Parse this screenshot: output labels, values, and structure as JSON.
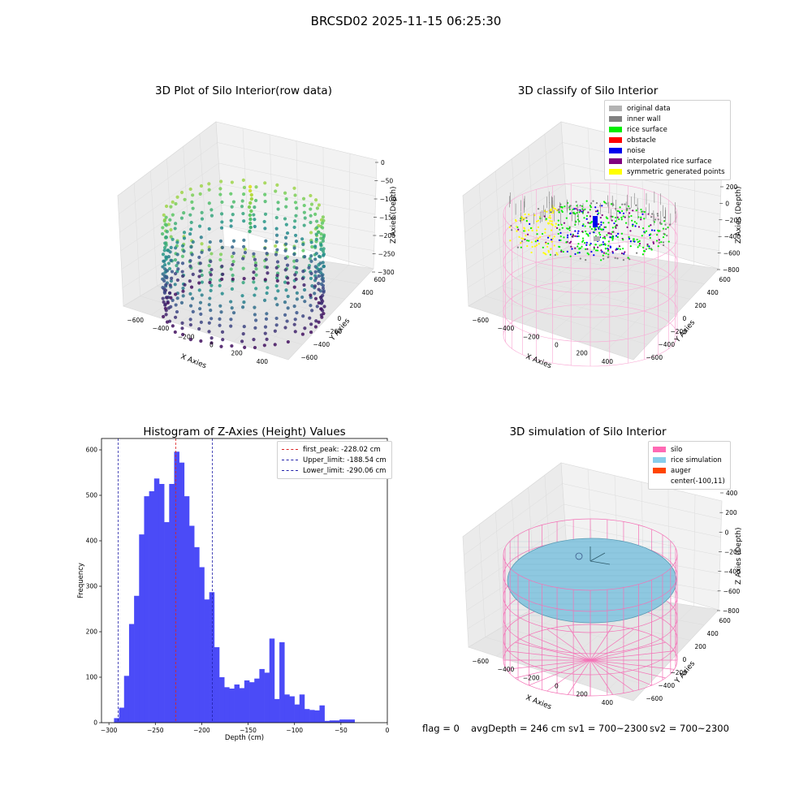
{
  "suptitle": "BRCSD02 2025-11-15 06:25:30",
  "colors": {
    "histogram_bar": "#4b4bf7",
    "peak_line": "#dd2222",
    "limit_line": "#2222aa",
    "silo_wire": "#f472b6",
    "rice_fill": "#8ec8e0",
    "rice_edge": "#5a9cb4"
  },
  "panels": {
    "raw": {
      "title": "3D Plot of Silo Interior(row data)",
      "xlabel": "X Axies",
      "ylabel": "Y Axies",
      "zlabel": "Z Axies (Depth)",
      "xticks": [
        "−600",
        "−400",
        "−200",
        "0",
        "200",
        "400"
      ],
      "yticks": [
        "−600",
        "−400",
        "−200",
        "0",
        "200",
        "400",
        "600"
      ],
      "zticks": [
        "0",
        "−50",
        "−100",
        "−150",
        "−200",
        "−250",
        "−300"
      ]
    },
    "classify": {
      "title": "3D classify of Silo Interior",
      "xlabel": "X Axies",
      "ylabel": "Y Axies",
      "zlabel": "Z Axies (Depth)",
      "xticks": [
        "−600",
        "−400",
        "−200",
        "0",
        "200",
        "400"
      ],
      "yticks": [
        "−600",
        "−400",
        "−200",
        "0",
        "200",
        "400",
        "600"
      ],
      "zticks": [
        "200",
        "0",
        "−200",
        "−400",
        "−600",
        "−800"
      ],
      "legend": [
        {
          "label": "original data",
          "color": "#b3b3b3"
        },
        {
          "label": "inner wall",
          "color": "#808080"
        },
        {
          "label": "rice surface",
          "color": "#00ee00"
        },
        {
          "label": "obstacle",
          "color": "#ff0000"
        },
        {
          "label": "noise",
          "color": "#0000ee"
        },
        {
          "label": "interpolated rice surface",
          "color": "#800080"
        },
        {
          "label": "symmetric generated points",
          "color": "#ffff00"
        }
      ]
    },
    "simulation": {
      "title": "3D simulation of Silo Interior",
      "xlabel": "X Axies",
      "ylabel": "Y Axies",
      "zlabel": "Z Axies (Depth)",
      "xticks": [
        "−600",
        "−400",
        "−200",
        "0",
        "200",
        "400"
      ],
      "yticks": [
        "−600",
        "−400",
        "−200",
        "0",
        "200",
        "400",
        "600"
      ],
      "zticks": [
        "400",
        "200",
        "0",
        "−200",
        "−400",
        "−600",
        "−800"
      ],
      "legend": [
        {
          "label": "silo",
          "color": "#ff69b4"
        },
        {
          "label": "rice simulation",
          "color": "#87ceeb"
        },
        {
          "label": "auger",
          "color": "#ff4500"
        },
        {
          "label": "center(-100,11)",
          "color": ""
        }
      ]
    }
  },
  "info_line": {
    "flag": "flag = 0",
    "avg": "avgDepth = 246 cm",
    "sv1": "sv1 = 700~2300",
    "sv2": "sv2 = 700~2300"
  },
  "chart_data": {
    "type": "bar",
    "title": "Histogram of Z-Axies (Height) Values",
    "xlabel": "Depth (cm)",
    "ylabel": "Frequency",
    "xlim": [
      -308,
      0
    ],
    "ylim": [
      0,
      625
    ],
    "xticks": [
      -300,
      -250,
      -200,
      -150,
      -100,
      -50,
      0
    ],
    "xtick_labels": [
      "−300",
      "−250",
      "−200",
      "−150",
      "−100",
      "−50",
      "0"
    ],
    "yticks": [
      0,
      100,
      200,
      300,
      400,
      500,
      600
    ],
    "bins": {
      "start": -294.5,
      "width": 5.4,
      "counts": [
        10,
        33,
        103,
        217,
        279,
        414,
        498,
        509,
        537,
        525,
        441,
        525,
        596,
        572,
        498,
        433,
        386,
        342,
        271,
        287,
        166,
        100,
        78,
        75,
        84,
        76,
        93,
        89,
        97,
        118,
        110,
        185,
        52,
        177,
        62,
        58,
        40,
        62,
        30,
        28,
        27,
        38,
        4,
        5,
        5,
        7,
        7,
        7
      ]
    },
    "lines": [
      {
        "name": "first_peak: -228.02 cm",
        "x": -228.02,
        "color": "#dd2222"
      },
      {
        "name": "Upper_limit: -188.54 cm",
        "x": -188.54,
        "color": "#2222aa"
      },
      {
        "name": "Lower_limit: -290.06 cm",
        "x": -290.06,
        "color": "#2222aa"
      }
    ],
    "legend_position": "top-right"
  }
}
